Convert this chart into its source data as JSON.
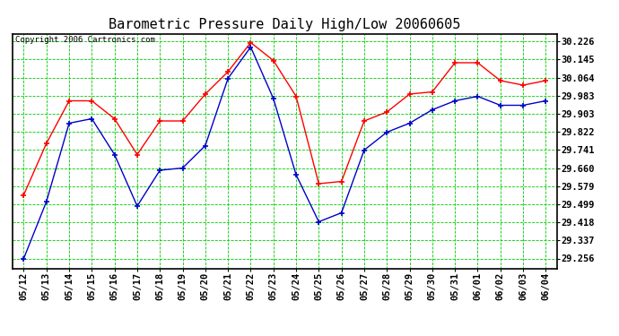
{
  "title": "Barometric Pressure Daily High/Low 20060605",
  "copyright": "Copyright 2006 Cartronics.com",
  "dates": [
    "05/12",
    "05/13",
    "05/14",
    "05/15",
    "05/16",
    "05/17",
    "05/18",
    "05/19",
    "05/20",
    "05/21",
    "05/22",
    "05/23",
    "05/24",
    "05/25",
    "05/26",
    "05/27",
    "05/28",
    "05/29",
    "05/30",
    "05/31",
    "06/01",
    "06/02",
    "06/03",
    "06/04"
  ],
  "high": [
    29.54,
    29.77,
    29.96,
    29.96,
    29.88,
    29.72,
    29.87,
    29.87,
    29.99,
    30.09,
    30.22,
    30.14,
    29.98,
    29.59,
    29.6,
    29.87,
    29.91,
    29.99,
    30.0,
    30.13,
    30.13,
    30.05,
    30.03,
    30.05
  ],
  "low": [
    29.256,
    29.51,
    29.86,
    29.88,
    29.72,
    29.49,
    29.65,
    29.66,
    29.76,
    30.06,
    30.2,
    29.97,
    29.63,
    29.42,
    29.46,
    29.74,
    29.82,
    29.86,
    29.92,
    29.96,
    29.98,
    29.94,
    29.94,
    29.96
  ],
  "high_color": "#ff0000",
  "low_color": "#0000cc",
  "bg_color": "#ffffff",
  "plot_bg_color": "#ffffff",
  "grid_color": "#00cc00",
  "title_fontsize": 11,
  "copyright_fontsize": 6.5,
  "ytick_fontsize": 7.5,
  "xtick_fontsize": 7.5,
  "yticks": [
    29.256,
    29.337,
    29.418,
    29.499,
    29.579,
    29.66,
    29.741,
    29.822,
    29.903,
    29.983,
    30.064,
    30.145,
    30.226
  ],
  "ylim_min": 29.21,
  "ylim_max": 30.26
}
